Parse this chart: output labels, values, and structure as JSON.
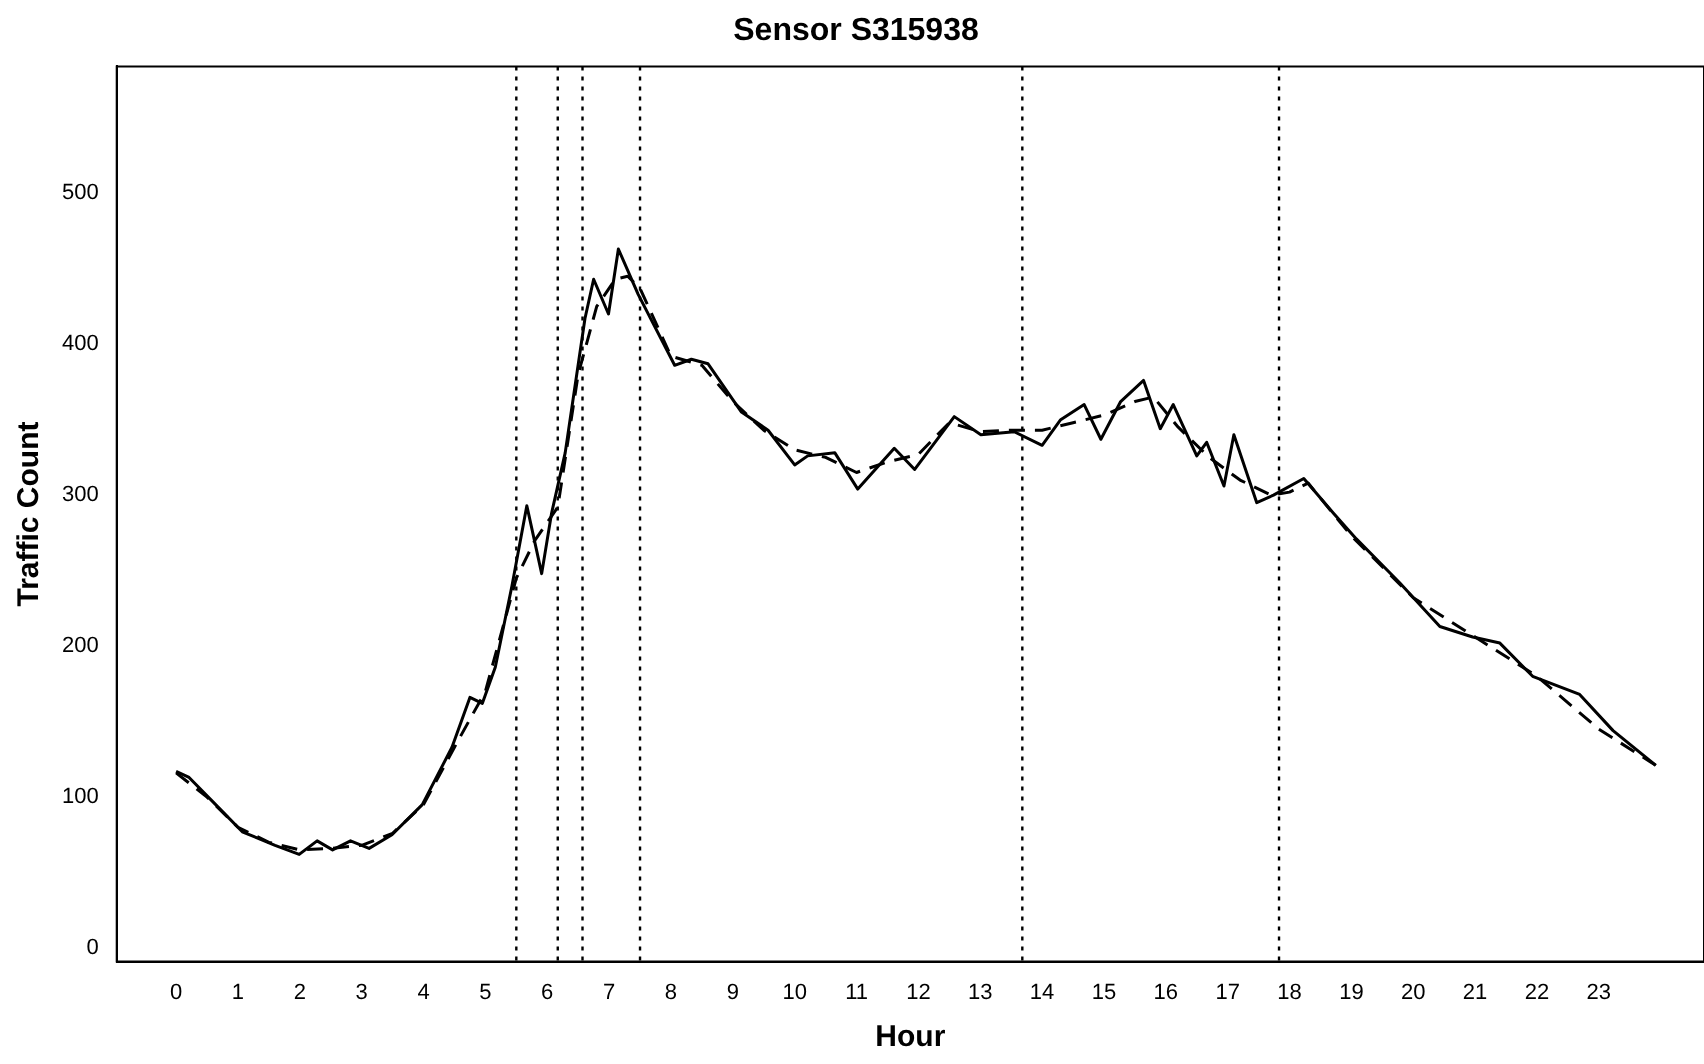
{
  "chart_data": {
    "type": "line",
    "title": "Sensor S315938",
    "xlabel": "Hour",
    "ylabel": "Traffic Count",
    "xlim": [
      -0.96,
      24.7
    ],
    "ylim": [
      -9,
      584
    ],
    "xticks": [
      0,
      1,
      2,
      3,
      4,
      5,
      6,
      7,
      8,
      9,
      10,
      11,
      12,
      13,
      14,
      15,
      16,
      17,
      18,
      19,
      20,
      21,
      22,
      23
    ],
    "yticks": [
      0,
      100,
      200,
      300,
      400,
      500
    ],
    "grid": false,
    "legend": false,
    "marker": "none",
    "ref_lines": [
      {
        "axis": "x",
        "value": 5.5,
        "line_style": "dotted",
        "color": "#000000"
      },
      {
        "axis": "x",
        "value": 6.17,
        "line_style": "dotted",
        "color": "#000000"
      },
      {
        "axis": "x",
        "value": 6.57,
        "line_style": "dotted",
        "color": "#000000"
      },
      {
        "axis": "x",
        "value": 7.5,
        "line_style": "dotted",
        "color": "#000000"
      },
      {
        "axis": "x",
        "value": 13.68,
        "line_style": "dotted",
        "color": "#000000"
      },
      {
        "axis": "x",
        "value": 17.83,
        "line_style": "dotted",
        "color": "#000000"
      }
    ],
    "series": [
      {
        "color": "#000000",
        "line_style": "solid",
        "x": [
          0,
          0.21,
          0.64,
          1.07,
          1.6,
          1.99,
          2.28,
          2.53,
          2.82,
          3.12,
          3.49,
          3.98,
          4.46,
          4.75,
          4.95,
          5.16,
          5.43,
          5.67,
          5.91,
          6.07,
          6.29,
          6.61,
          6.75,
          6.99,
          7.15,
          7.47,
          8.06,
          8.33,
          8.6,
          9.14,
          9.57,
          10.0,
          10.21,
          10.65,
          11.02,
          11.61,
          11.94,
          12.58,
          13.01,
          13.55,
          14.0,
          14.3,
          14.68,
          14.95,
          15.27,
          15.64,
          15.91,
          16.12,
          16.5,
          16.66,
          16.94,
          17.1,
          17.47,
          17.74,
          18.23,
          18.71,
          19.08,
          19.78,
          20.43,
          20.96,
          21.4,
          21.93,
          22.69,
          23.23,
          23.92
        ],
        "values": [
          117,
          113,
          95,
          77,
          68,
          62,
          71,
          65,
          71,
          66,
          75,
          95,
          133,
          166,
          162,
          186,
          240,
          293,
          248,
          288,
          328,
          417,
          443,
          420,
          463,
          433,
          386,
          390,
          387,
          355,
          343,
          320,
          326,
          328,
          304,
          331,
          317,
          352,
          340,
          342,
          333,
          350,
          360,
          337,
          362,
          376,
          344,
          360,
          326,
          335,
          306,
          340,
          295,
          300,
          311,
          288,
          271,
          242,
          213,
          206,
          202,
          180,
          168,
          144,
          121
        ]
      },
      {
        "color": "#000000",
        "line_style": "dashed",
        "x": [
          0,
          0.5,
          1,
          1.5,
          2,
          2.5,
          3,
          3.5,
          4,
          4.5,
          5,
          5.5,
          5.8,
          6.17,
          6.5,
          6.8,
          7.1,
          7.3,
          7.5,
          8,
          8.5,
          9,
          9.5,
          10,
          10.5,
          11,
          11.5,
          12,
          12.5,
          13,
          13.5,
          14,
          14.5,
          15,
          15.5,
          15.8,
          16.2,
          16.7,
          17.2,
          17.7,
          18,
          18.3,
          19,
          20,
          21,
          22,
          23,
          23.92
        ],
        "values": [
          116,
          100,
          80,
          70,
          65,
          66,
          68,
          76,
          95,
          133,
          170,
          245,
          270,
          292,
          380,
          425,
          443,
          445,
          437,
          392,
          386,
          362,
          343,
          330,
          325,
          315,
          322,
          327,
          348,
          342,
          343,
          343,
          348,
          353,
          362,
          365,
          345,
          325,
          310,
          300,
          302,
          308,
          273,
          232,
          206,
          180,
          145,
          121
        ]
      }
    ]
  }
}
